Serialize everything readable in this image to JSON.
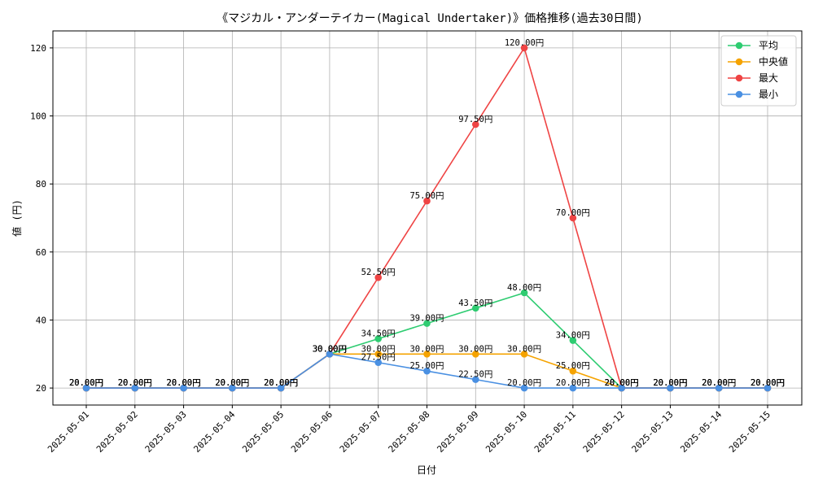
{
  "chart_data": {
    "type": "line",
    "title": "《マジカル・アンダーテイカー(Magical Undertaker)》価格推移(過去30日間)",
    "xlabel": "日付",
    "ylabel": "値 (円)",
    "ylim": [
      15,
      125
    ],
    "yticks": [
      20,
      40,
      60,
      80,
      100,
      120
    ],
    "grid": true,
    "legend_position": "top-right",
    "value_suffix": "円",
    "categories": [
      "2025-05-01",
      "2025-05-02",
      "2025-05-03",
      "2025-05-04",
      "2025-05-05",
      "2025-05-06",
      "2025-05-07",
      "2025-05-08",
      "2025-05-09",
      "2025-05-10",
      "2025-05-11",
      "2025-05-12",
      "2025-05-13",
      "2025-05-14",
      "2025-05-15"
    ],
    "series": [
      {
        "name": "平均",
        "color": "#2ecc71",
        "values": [
          20,
          20,
          20,
          20,
          20,
          30,
          34.5,
          39,
          43.5,
          48,
          34,
          20,
          20,
          20,
          20
        ]
      },
      {
        "name": "中央値",
        "color": "#f5a300",
        "values": [
          20,
          20,
          20,
          20,
          20,
          30,
          30,
          30,
          30,
          30,
          25,
          20,
          20,
          20,
          20
        ]
      },
      {
        "name": "最大",
        "color": "#ef4444",
        "values": [
          20,
          20,
          20,
          20,
          20,
          30,
          52.5,
          75,
          97.5,
          120,
          70,
          20,
          20,
          20,
          20
        ]
      },
      {
        "name": "最小",
        "color": "#4a90e2",
        "values": [
          20,
          20,
          20,
          20,
          20,
          30,
          27.5,
          25,
          22.5,
          20,
          20,
          20,
          20,
          20,
          20
        ]
      }
    ]
  }
}
